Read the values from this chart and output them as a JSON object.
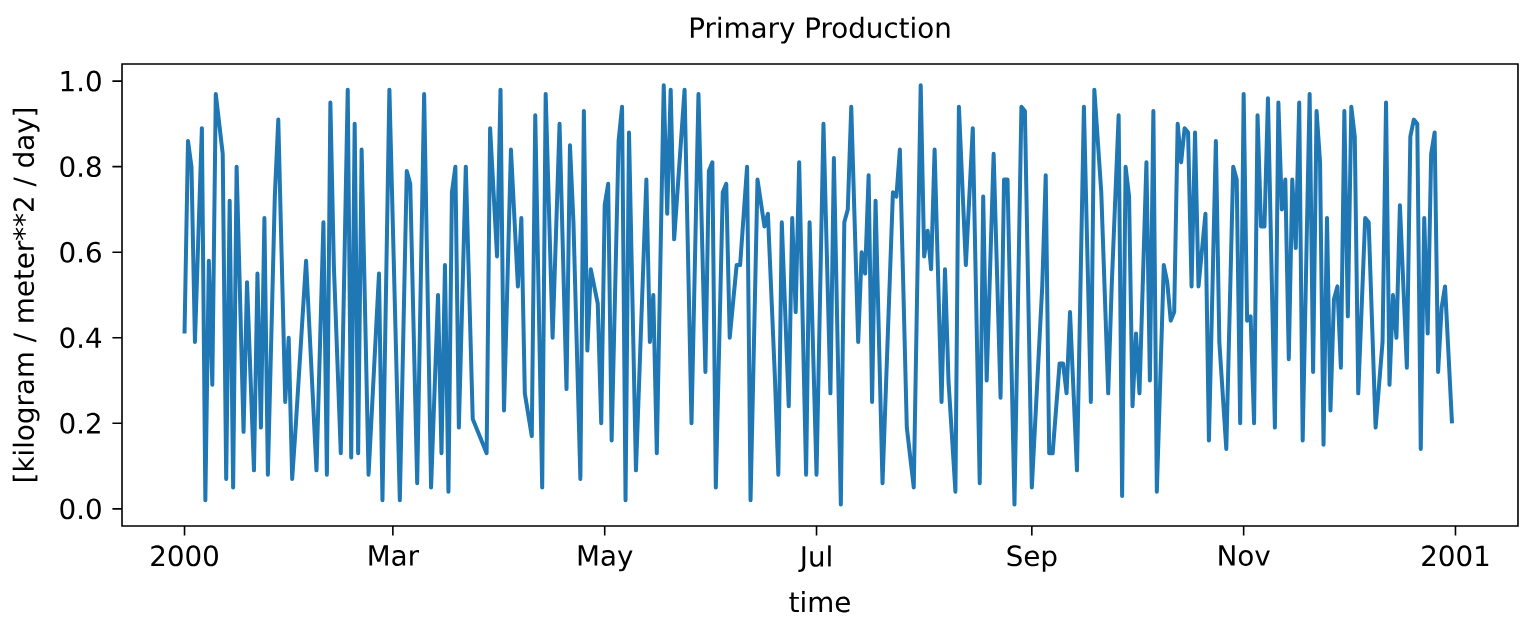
{
  "chart_data": {
    "type": "line",
    "title": "Primary Production",
    "xlabel": "time",
    "ylabel": "[kilogram / meter**2 / day]",
    "color": "#1f77b4",
    "xlim": [
      "1999-12-14",
      "2001-01-19"
    ],
    "ylim": [
      -0.04,
      1.04
    ],
    "xticks": [
      {
        "value": "2000-01-01",
        "label": "2000"
      },
      {
        "value": "2000-03-01",
        "label": "Mar"
      },
      {
        "value": "2000-05-01",
        "label": "May"
      },
      {
        "value": "2000-07-01",
        "label": "Jul"
      },
      {
        "value": "2000-09-01",
        "label": "Sep"
      },
      {
        "value": "2000-11-01",
        "label": "Nov"
      },
      {
        "value": "2001-01-01",
        "label": "2001"
      }
    ],
    "yticks": [
      {
        "value": 0,
        "label": "0.0"
      },
      {
        "value": 0.2,
        "label": "0.2"
      },
      {
        "value": 0.4,
        "label": "0.4"
      },
      {
        "value": 0.6,
        "label": "0.6"
      },
      {
        "value": 0.8,
        "label": "0.8"
      },
      {
        "value": 1.0,
        "label": "1.0"
      }
    ],
    "x": [
      "2000-01-01",
      "2000-01-02",
      "2000-01-03",
      "2000-01-04",
      "2000-01-06",
      "2000-01-07",
      "2000-01-08",
      "2000-01-09",
      "2000-01-10",
      "2000-01-12",
      "2000-01-13",
      "2000-01-14",
      "2000-01-15",
      "2000-01-16",
      "2000-01-18",
      "2000-01-19",
      "2000-01-21",
      "2000-01-22",
      "2000-01-23",
      "2000-01-24",
      "2000-01-25",
      "2000-01-27",
      "2000-01-28",
      "2000-01-30",
      "2000-01-31",
      "2000-02-01",
      "2000-02-02",
      "2000-02-05",
      "2000-02-08",
      "2000-02-10",
      "2000-02-11",
      "2000-02-12",
      "2000-02-13",
      "2000-02-15",
      "2000-02-17",
      "2000-02-18",
      "2000-02-19",
      "2000-02-20",
      "2000-02-21",
      "2000-02-23",
      "2000-02-26",
      "2000-02-27",
      "2000-02-29",
      "2000-03-03",
      "2000-03-05",
      "2000-03-06",
      "2000-03-08",
      "2000-03-10",
      "2000-03-12",
      "2000-03-14",
      "2000-03-15",
      "2000-03-16",
      "2000-03-17",
      "2000-03-18",
      "2000-03-19",
      "2000-03-20",
      "2000-03-22",
      "2000-03-24",
      "2000-03-28",
      "2000-03-29",
      "2000-03-31",
      "2000-04-01",
      "2000-04-02",
      "2000-04-04",
      "2000-04-06",
      "2000-04-07",
      "2000-04-08",
      "2000-04-10",
      "2000-04-11",
      "2000-04-13",
      "2000-04-14",
      "2000-04-16",
      "2000-04-18",
      "2000-04-20",
      "2000-04-21",
      "2000-04-22",
      "2000-04-24",
      "2000-04-25",
      "2000-04-26",
      "2000-04-27",
      "2000-04-29",
      "2000-04-30",
      "2000-05-01",
      "2000-05-02",
      "2000-05-03",
      "2000-05-05",
      "2000-05-06",
      "2000-05-07",
      "2000-05-08",
      "2000-05-10",
      "2000-05-13",
      "2000-05-14",
      "2000-05-15",
      "2000-05-16",
      "2000-05-18",
      "2000-05-19",
      "2000-05-20",
      "2000-05-21",
      "2000-05-24",
      "2000-05-26",
      "2000-05-28",
      "2000-05-30",
      "2000-05-31",
      "2000-06-01",
      "2000-06-02",
      "2000-06-04",
      "2000-06-05",
      "2000-06-06",
      "2000-06-08",
      "2000-06-09",
      "2000-06-11",
      "2000-06-12",
      "2000-06-14",
      "2000-06-16",
      "2000-06-17",
      "2000-06-19",
      "2000-06-20",
      "2000-06-21",
      "2000-06-23",
      "2000-06-24",
      "2000-06-25",
      "2000-06-26",
      "2000-06-28",
      "2000-06-29",
      "2000-07-01",
      "2000-07-03",
      "2000-07-05",
      "2000-07-06",
      "2000-07-08",
      "2000-07-09",
      "2000-07-10",
      "2000-07-11",
      "2000-07-13",
      "2000-07-14",
      "2000-07-15",
      "2000-07-16",
      "2000-07-17",
      "2000-07-18",
      "2000-07-20",
      "2000-07-23",
      "2000-07-24",
      "2000-07-25",
      "2000-07-27",
      "2000-07-29",
      "2000-07-31",
      "2000-08-01",
      "2000-08-02",
      "2000-08-03",
      "2000-08-04",
      "2000-08-06",
      "2000-08-07",
      "2000-08-08",
      "2000-08-10",
      "2000-08-11",
      "2000-08-13",
      "2000-08-15",
      "2000-08-17",
      "2000-08-18",
      "2000-08-19",
      "2000-08-21",
      "2000-08-23",
      "2000-08-24",
      "2000-08-25",
      "2000-08-27",
      "2000-08-29",
      "2000-08-30",
      "2000-09-01",
      "2000-09-04",
      "2000-09-05",
      "2000-09-06",
      "2000-09-07",
      "2000-09-09",
      "2000-09-10",
      "2000-09-11",
      "2000-09-12",
      "2000-09-14",
      "2000-09-16",
      "2000-09-18",
      "2000-09-19",
      "2000-09-21",
      "2000-09-23",
      "2000-09-24",
      "2000-09-26",
      "2000-09-27",
      "2000-09-28",
      "2000-09-29",
      "2000-09-30",
      "2000-10-01",
      "2000-10-02",
      "2000-10-04",
      "2000-10-05",
      "2000-10-06",
      "2000-10-07",
      "2000-10-09",
      "2000-10-10",
      "2000-10-11",
      "2000-10-12",
      "2000-10-13",
      "2000-10-14",
      "2000-10-15",
      "2000-10-16",
      "2000-10-17",
      "2000-10-18",
      "2000-10-19",
      "2000-10-21",
      "2000-10-22",
      "2000-10-24",
      "2000-10-25",
      "2000-10-27",
      "2000-10-29",
      "2000-10-30",
      "2000-10-31",
      "2000-11-01",
      "2000-11-02",
      "2000-11-03",
      "2000-11-04",
      "2000-11-05",
      "2000-11-06",
      "2000-11-07",
      "2000-11-08",
      "2000-11-10",
      "2000-11-11",
      "2000-11-12",
      "2000-11-13",
      "2000-11-14",
      "2000-11-15",
      "2000-11-16",
      "2000-11-17",
      "2000-11-18",
      "2000-11-20",
      "2000-11-21",
      "2000-11-22",
      "2000-11-23",
      "2000-11-24",
      "2000-11-25",
      "2000-11-26",
      "2000-11-27",
      "2000-11-28",
      "2000-11-29",
      "2000-11-30",
      "2000-12-01",
      "2000-12-02",
      "2000-12-03",
      "2000-12-04",
      "2000-12-06",
      "2000-12-07",
      "2000-12-09",
      "2000-12-11",
      "2000-12-12",
      "2000-12-13",
      "2000-12-14",
      "2000-12-15",
      "2000-12-16",
      "2000-12-18",
      "2000-12-19",
      "2000-12-20",
      "2000-12-21",
      "2000-12-22",
      "2000-12-23",
      "2000-12-24",
      "2000-12-25",
      "2000-12-26",
      "2000-12-27",
      "2000-12-28",
      "2000-12-29",
      "2000-12-30",
      "2000-12-31"
    ],
    "values": [
      0.41,
      0.86,
      0.8,
      0.39,
      0.89,
      0.02,
      0.58,
      0.29,
      0.97,
      0.83,
      0.07,
      0.72,
      0.05,
      0.8,
      0.18,
      0.53,
      0.09,
      0.55,
      0.19,
      0.68,
      0.08,
      0.73,
      0.91,
      0.25,
      0.4,
      0.07,
      0.19,
      0.58,
      0.09,
      0.67,
      0.08,
      0.95,
      0.57,
      0.13,
      0.98,
      0.12,
      0.9,
      0.13,
      0.84,
      0.08,
      0.55,
      0.02,
      0.98,
      0.02,
      0.79,
      0.76,
      0.06,
      0.97,
      0.05,
      0.5,
      0.13,
      0.57,
      0.04,
      0.74,
      0.8,
      0.19,
      0.8,
      0.21,
      0.13,
      0.89,
      0.59,
      0.98,
      0.23,
      0.84,
      0.52,
      0.68,
      0.27,
      0.17,
      0.92,
      0.05,
      0.97,
      0.4,
      0.9,
      0.28,
      0.85,
      0.67,
      0.07,
      0.93,
      0.37,
      0.56,
      0.48,
      0.2,
      0.71,
      0.76,
      0.16,
      0.86,
      0.94,
      0.02,
      0.88,
      0.09,
      0.77,
      0.39,
      0.5,
      0.13,
      0.99,
      0.69,
      0.98,
      0.63,
      0.98,
      0.2,
      0.97,
      0.32,
      0.79,
      0.81,
      0.05,
      0.74,
      0.76,
      0.4,
      0.57,
      0.57,
      0.8,
      0.02,
      0.77,
      0.66,
      0.69,
      0.31,
      0.08,
      0.67,
      0.24,
      0.68,
      0.46,
      0.81,
      0.08,
      0.67,
      0.08,
      0.9,
      0.27,
      0.82,
      0.01,
      0.67,
      0.7,
      0.94,
      0.39,
      0.6,
      0.55,
      0.78,
      0.25,
      0.72,
      0.06,
      0.74,
      0.73,
      0.84,
      0.19,
      0.05,
      0.99,
      0.59,
      0.65,
      0.56,
      0.84,
      0.25,
      0.56,
      0.3,
      0.04,
      0.94,
      0.57,
      0.89,
      0.06,
      0.73,
      0.3,
      0.83,
      0.26,
      0.77,
      0.77,
      0.01,
      0.94,
      0.93,
      0.05,
      0.52,
      0.78,
      0.13,
      0.13,
      0.34,
      0.34,
      0.27,
      0.46,
      0.09,
      0.94,
      0.25,
      0.98,
      0.74,
      0.27,
      0.52,
      0.92,
      0.03,
      0.8,
      0.73,
      0.24,
      0.41,
      0.27,
      0.81,
      0.3,
      0.93,
      0.04,
      0.57,
      0.53,
      0.44,
      0.46,
      0.9,
      0.81,
      0.89,
      0.88,
      0.52,
      0.88,
      0.52,
      0.69,
      0.16,
      0.86,
      0.39,
      0.14,
      0.8,
      0.77,
      0.2,
      0.97,
      0.44,
      0.45,
      0.2,
      0.92,
      0.66,
      0.66,
      0.96,
      0.19,
      0.95,
      0.7,
      0.77,
      0.35,
      0.77,
      0.61,
      0.95,
      0.16,
      0.97,
      0.32,
      0.93,
      0.81,
      0.15,
      0.68,
      0.23,
      0.49,
      0.52,
      0.33,
      0.93,
      0.45,
      0.94,
      0.87,
      0.27,
      0.68,
      0.67,
      0.19,
      0.39,
      0.95,
      0.29,
      0.5,
      0.4,
      0.71,
      0.33,
      0.87,
      0.91,
      0.9,
      0.14,
      0.68,
      0.41,
      0.83,
      0.88,
      0.32,
      0.47,
      0.52,
      0.36,
      0.2
    ]
  }
}
